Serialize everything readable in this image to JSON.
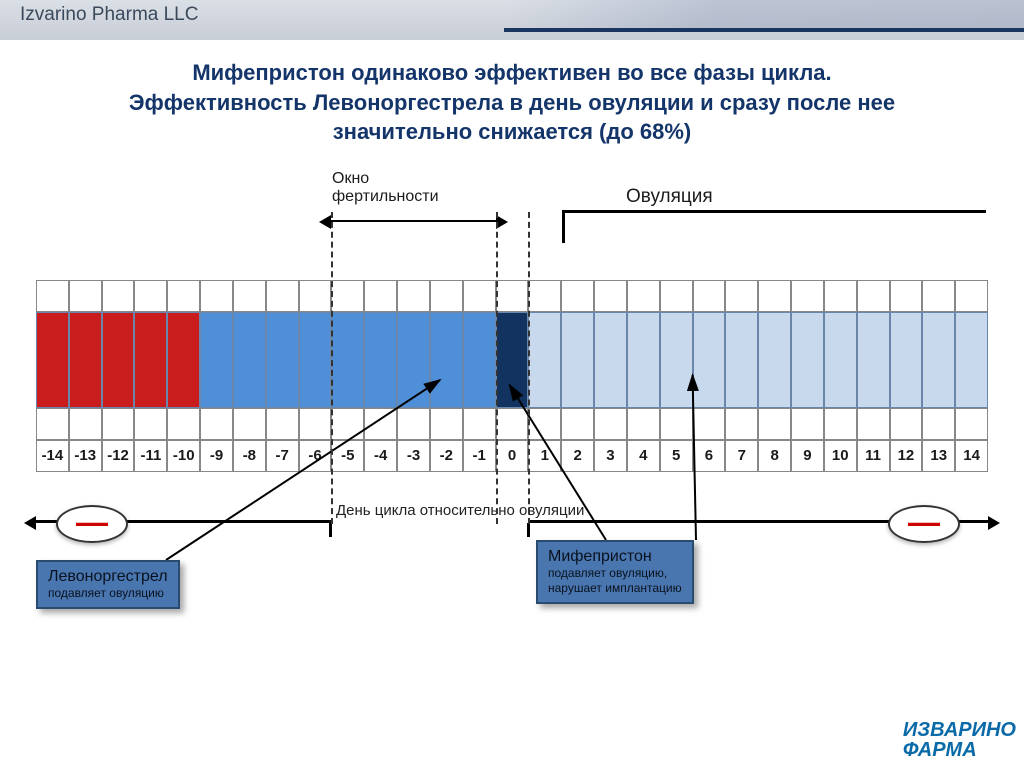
{
  "header": {
    "company": "Izvarino Pharma LLC"
  },
  "title_lines": [
    "Мифепристон одинаково эффективен во все фазы цикла.",
    "Эффективность Левоноргестрела в день овуляции и сразу после нее",
    "значительно снижается (до 68%)"
  ],
  "timeline": {
    "days": [
      -14,
      -13,
      -12,
      -11,
      -10,
      -9,
      -8,
      -7,
      -6,
      -5,
      -4,
      -3,
      -2,
      -1,
      0,
      1,
      2,
      3,
      4,
      5,
      6,
      7,
      8,
      9,
      10,
      11,
      12,
      13,
      14
    ],
    "segments": [
      {
        "from": -14,
        "to": -10,
        "color": "#c91c1c"
      },
      {
        "from": -9,
        "to": 0,
        "color": "#4f8fd8"
      },
      {
        "from": 0,
        "to": 1,
        "color": "#12335f"
      },
      {
        "from": 1,
        "to": 14,
        "color": "#c8d9ee"
      }
    ],
    "grid_inner_color": "#6a86aa",
    "x_axis_label": "День цикла относительно овуляции"
  },
  "annotations": {
    "fertility_window": {
      "label": "Окно\nфертильности",
      "from_day": -5,
      "to_day": 0
    },
    "ovulation": {
      "label": "Овуляция",
      "day": 1
    },
    "dash_days": [
      -5,
      0,
      1
    ],
    "dash_color": "#333"
  },
  "info_boxes": {
    "levo": {
      "name": "Левоноргестрел",
      "detail": "подавляет овуляцию"
    },
    "mife": {
      "name": "Мифепристон",
      "detail": "подавляет овуляцию,\nнарушает имплантацию"
    }
  },
  "minus_symbol": "—",
  "logo": {
    "line1": "ИЗВАРИНО",
    "line2": "ФАРМА"
  },
  "style": {
    "title_color": "#14356a",
    "title_fontsize": 22,
    "infobox_bg": "#4a76b0",
    "infobox_border": "#2a4a70",
    "cell_border": "#888",
    "label_fontsize": 15
  }
}
